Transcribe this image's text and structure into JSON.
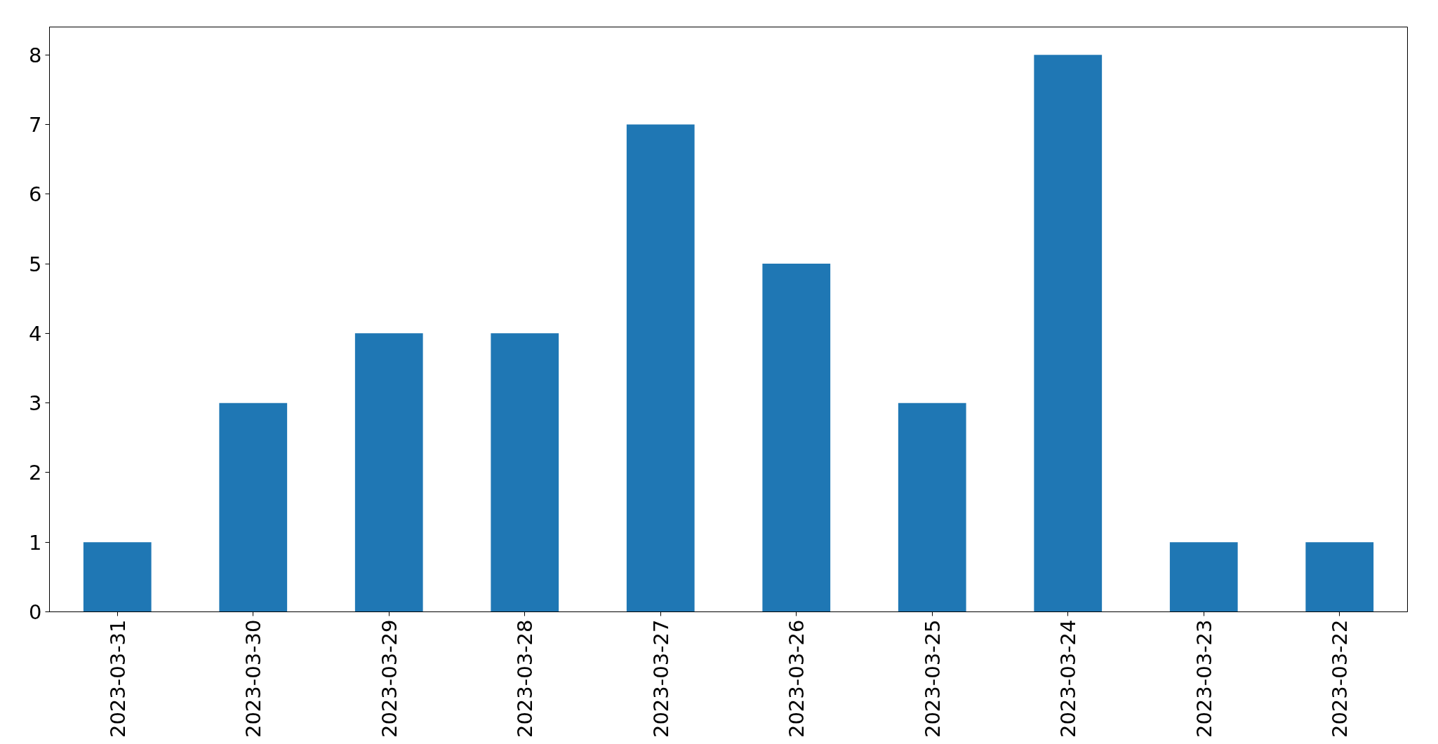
{
  "chart_data": {
    "type": "bar",
    "categories": [
      "2023-03-31",
      "2023-03-30",
      "2023-03-29",
      "2023-03-28",
      "2023-03-27",
      "2023-03-26",
      "2023-03-25",
      "2023-03-24",
      "2023-03-23",
      "2023-03-22"
    ],
    "values": [
      1,
      3,
      4,
      4,
      7,
      5,
      3,
      8,
      1,
      1
    ],
    "color": "#1f77b4",
    "ylim": [
      0,
      8.4
    ],
    "yticks": [
      0,
      1,
      2,
      3,
      4,
      5,
      6,
      7,
      8
    ]
  }
}
